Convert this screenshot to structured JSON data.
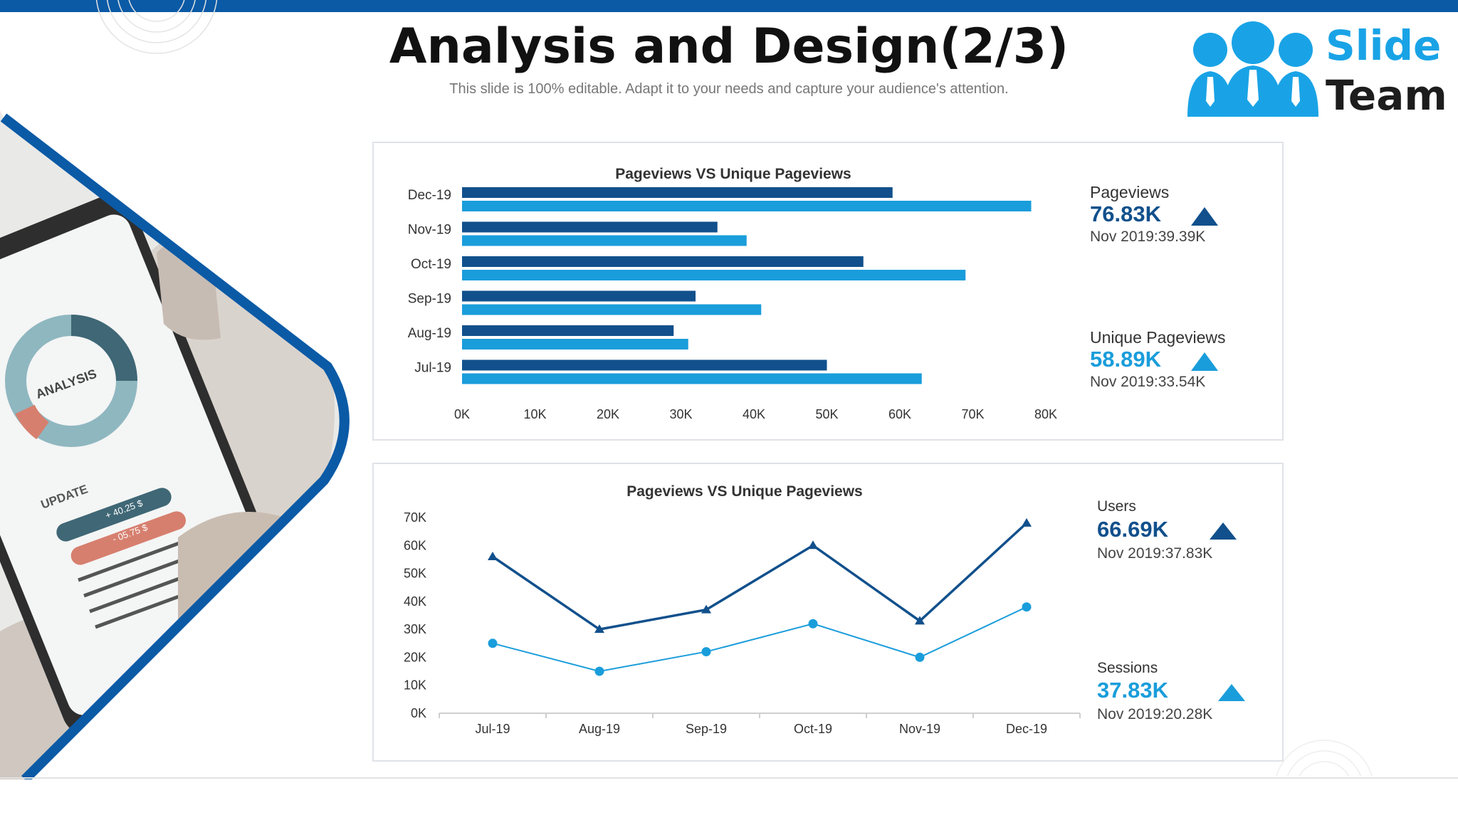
{
  "header": {
    "title": "Analysis and Design(2/3)",
    "subtitle": "This slide is 100% editable. Adapt it to your needs and capture your audience's attention."
  },
  "logo": {
    "word1": "Slide",
    "word2": "Team"
  },
  "photo": {
    "screen_label": "ANALYSIS",
    "update_label": "UPDATE",
    "value_up": "+ 40.25 $",
    "value_down": "- 05.75 $"
  },
  "colors": {
    "dark": "#11508c",
    "light": "#1a9ddb",
    "accent_bar": "#0b5aa6"
  },
  "chart_data": [
    {
      "type": "bar",
      "orientation": "horizontal",
      "title": "Pageviews VS Unique Pageviews",
      "categories": [
        "Dec-19",
        "Nov-19",
        "Oct-19",
        "Sep-19",
        "Aug-19",
        "Jul-19"
      ],
      "series": [
        {
          "values": [
            59000,
            35000,
            55000,
            32000,
            29000,
            50000
          ]
        },
        {
          "values": [
            78000,
            39000,
            69000,
            41000,
            31000,
            63000
          ]
        }
      ],
      "xlim": [
        0,
        80000
      ],
      "xticks": [
        "0K",
        "10K",
        "20K",
        "30K",
        "40K",
        "50K",
        "60K",
        "70K",
        "80K"
      ],
      "grid": false,
      "legend": "none"
    },
    {
      "type": "line",
      "title": "Pageviews VS Unique Pageviews",
      "categories": [
        "Jul-19",
        "Aug-19",
        "Sep-19",
        "Oct-19",
        "Nov-19",
        "Dec-19"
      ],
      "series": [
        {
          "marker": "triangle",
          "values": [
            56000,
            30000,
            37000,
            60000,
            33000,
            68000
          ]
        },
        {
          "marker": "circle",
          "values": [
            25000,
            15000,
            22000,
            32000,
            20000,
            38000
          ]
        }
      ],
      "ylim": [
        0,
        70000
      ],
      "yticks": [
        "0K",
        "10K",
        "20K",
        "30K",
        "40K",
        "50K",
        "60K",
        "70K"
      ],
      "grid": false,
      "legend": "none"
    }
  ],
  "stats": {
    "pageviews": {
      "label": "Pageviews",
      "value": "76.83K",
      "prev": "Nov 2019:39.39K"
    },
    "unique": {
      "label": "Unique Pageviews",
      "value": "58.89K",
      "prev": "Nov 2019:33.54K"
    },
    "users": {
      "label": "Users",
      "value": "66.69K",
      "prev": "Nov 2019:37.83K"
    },
    "sessions": {
      "label": "Sessions",
      "value": "37.83K",
      "prev": "Nov 2019:20.28K"
    }
  }
}
